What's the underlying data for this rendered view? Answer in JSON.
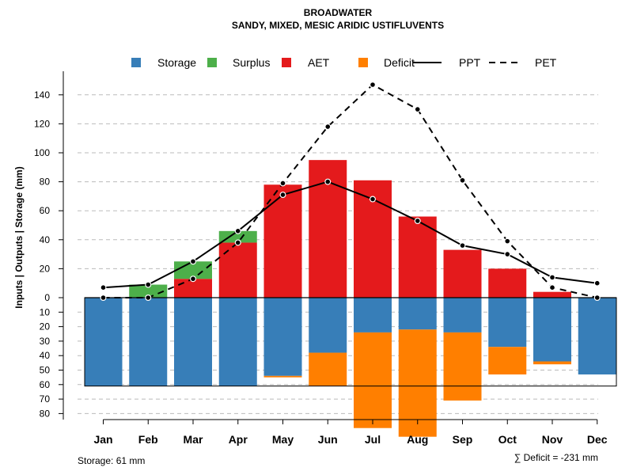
{
  "chart_data": {
    "type": "bar",
    "title": "BROADWATER",
    "subtitle": "SANDY, MIXED, MESIC ARIDIC USTIFLUVENTS",
    "ylabel": "Inputs | Outputs | Storage     (mm)",
    "categories": [
      "Jan",
      "Feb",
      "Mar",
      "Apr",
      "May",
      "Jun",
      "Jul",
      "Aug",
      "Sep",
      "Oct",
      "Nov",
      "Dec"
    ],
    "ylim": [
      -80,
      150
    ],
    "y_ticks_upper": [
      0,
      20,
      40,
      60,
      80,
      100,
      120,
      140
    ],
    "y_ticks_lower": [
      10,
      20,
      30,
      40,
      50,
      60,
      70,
      80
    ],
    "legend": [
      {
        "name": "Storage",
        "kind": "box",
        "color": "#377EB8"
      },
      {
        "name": "Surplus",
        "kind": "box",
        "color": "#4DAF4A"
      },
      {
        "name": "AET",
        "kind": "box",
        "color": "#E41A1C"
      },
      {
        "name": "Deficit",
        "kind": "box",
        "color": "#FF7F00"
      },
      {
        "name": "PPT",
        "kind": "solid"
      },
      {
        "name": "PET",
        "kind": "dashed"
      }
    ],
    "series": [
      {
        "name": "AET",
        "color": "#E41A1C",
        "values": [
          0,
          0,
          13,
          38,
          78,
          95,
          81,
          56,
          33,
          20,
          4,
          0
        ]
      },
      {
        "name": "Surplus",
        "color": "#4DAF4A",
        "values": [
          0,
          9,
          12,
          8,
          0,
          0,
          0,
          0,
          0,
          0,
          0,
          0
        ]
      },
      {
        "name": "Storage",
        "color": "#377EB8",
        "values": [
          61,
          61,
          61,
          61,
          54,
          38,
          24,
          22,
          24,
          34,
          44,
          53
        ]
      },
      {
        "name": "Deficit",
        "color": "#FF7F00",
        "values": [
          0,
          0,
          0,
          0,
          1,
          23,
          66,
          74,
          47,
          19,
          2,
          0
        ]
      },
      {
        "name": "PPT",
        "color": "#000000",
        "values": [
          7,
          9,
          25,
          46,
          71,
          80,
          68,
          53,
          36,
          30,
          14,
          10
        ]
      },
      {
        "name": "PET",
        "color": "#000000",
        "values": [
          0,
          0,
          13,
          38,
          79,
          118,
          147,
          130,
          81,
          39,
          7,
          0
        ]
      }
    ],
    "storage_capacity": 61,
    "storage_label": "Storage: 61 mm",
    "deficit_label": "∑ Deficit = -231 mm"
  }
}
